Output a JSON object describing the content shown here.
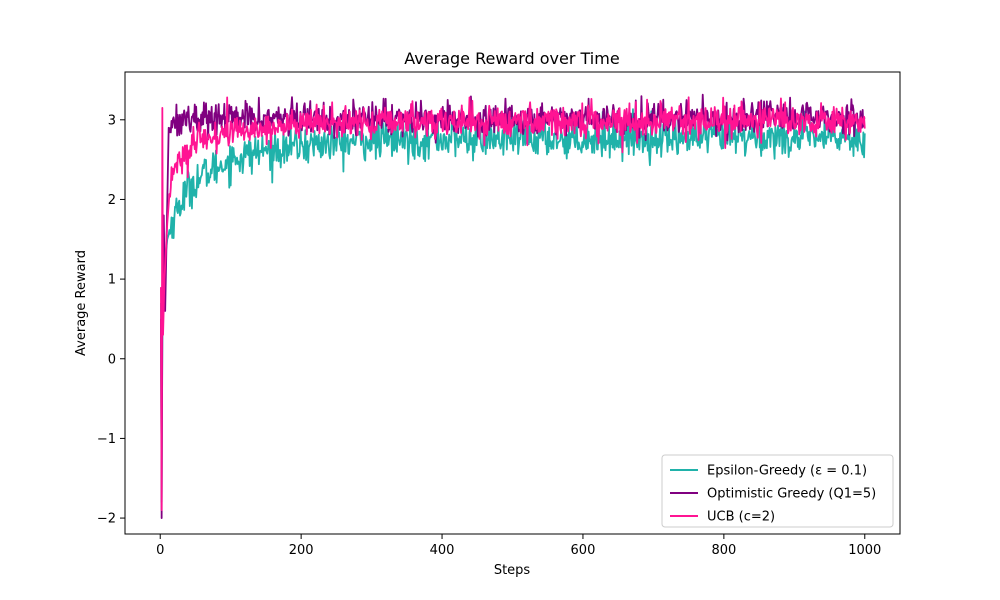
{
  "chart_data": {
    "type": "line",
    "title": "Average Reward over Time",
    "xlabel": "Steps",
    "ylabel": "Average Reward",
    "xlim": [
      -50,
      1050
    ],
    "ylim": [
      -2.2,
      3.6
    ],
    "xticks": [
      0,
      200,
      400,
      600,
      800,
      1000
    ],
    "yticks": [
      -2,
      -1,
      0,
      1,
      2,
      3
    ],
    "ytick_labels": [
      "−2",
      "−1",
      "0",
      "1",
      "2",
      "3"
    ],
    "grid": false,
    "legend_position": "lower-right",
    "n_steps": 1000,
    "series": [
      {
        "name": "Epsilon-Greedy (ε = 0.1)",
        "color": "#20b2aa",
        "curve": [
          [
            1,
            0.7
          ],
          [
            2,
            -1.8
          ],
          [
            3,
            0.3
          ],
          [
            5,
            1.1
          ],
          [
            10,
            1.5
          ],
          [
            20,
            1.8
          ],
          [
            40,
            2.15
          ],
          [
            60,
            2.3
          ],
          [
            100,
            2.5
          ],
          [
            150,
            2.62
          ],
          [
            200,
            2.68
          ],
          [
            300,
            2.74
          ],
          [
            400,
            2.76
          ],
          [
            600,
            2.77
          ],
          [
            800,
            2.78
          ],
          [
            1000,
            2.78
          ]
        ],
        "noise": 0.12
      },
      {
        "name": "Optimistic Greedy (Q1=5)",
        "color": "#800080",
        "curve": [
          [
            1,
            0.5
          ],
          [
            2,
            -2.0
          ],
          [
            3,
            0.5
          ],
          [
            5,
            1.8
          ],
          [
            7,
            0.6
          ],
          [
            9,
            1.5
          ],
          [
            12,
            2.9
          ],
          [
            20,
            3.0
          ],
          [
            40,
            3.02
          ],
          [
            100,
            3.02
          ],
          [
            1000,
            3.02
          ]
        ],
        "noise": 0.1
      },
      {
        "name": "UCB (c=2)",
        "color": "#ff1493",
        "curve": [
          [
            1,
            0.9
          ],
          [
            2,
            -1.9
          ],
          [
            3,
            3.15
          ],
          [
            4,
            0.3
          ],
          [
            6,
            1.0
          ],
          [
            10,
            1.7
          ],
          [
            15,
            2.3
          ],
          [
            25,
            2.45
          ],
          [
            40,
            2.6
          ],
          [
            60,
            2.75
          ],
          [
            100,
            2.85
          ],
          [
            200,
            2.95
          ],
          [
            400,
            2.98
          ],
          [
            1000,
            3.0
          ]
        ],
        "noise": 0.1
      }
    ]
  }
}
